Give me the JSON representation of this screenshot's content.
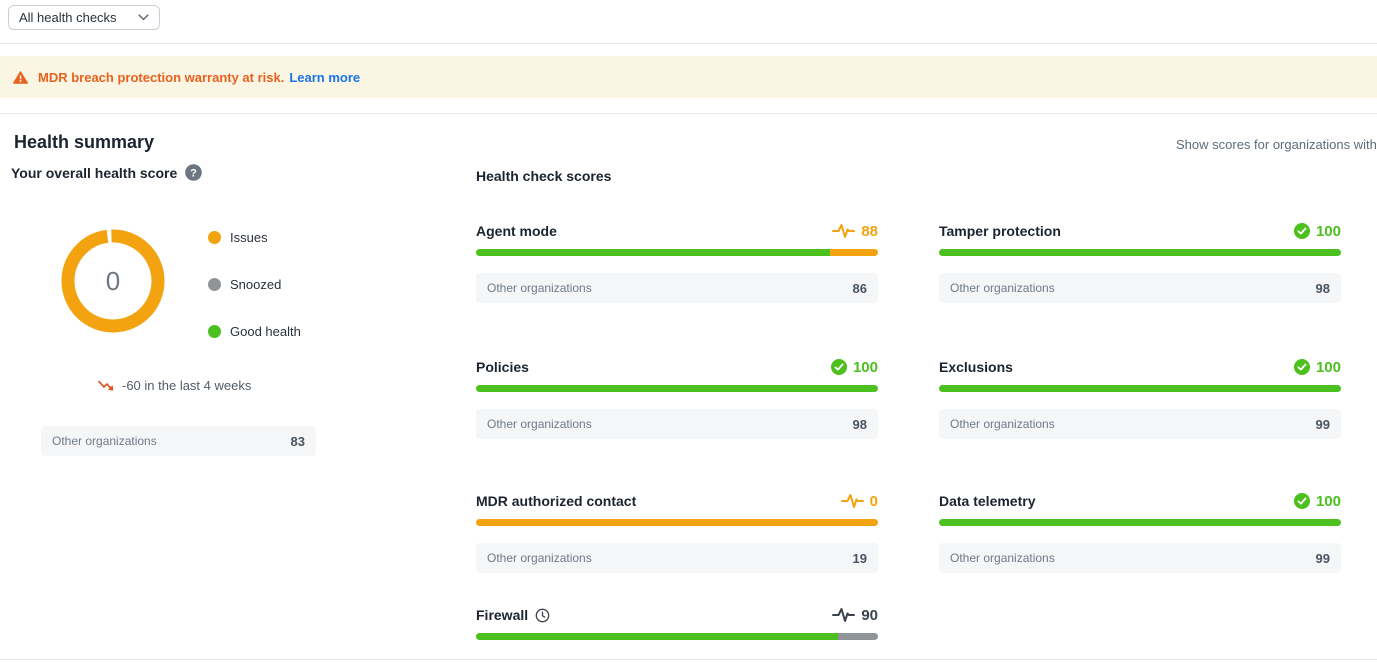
{
  "colors": {
    "orange": "#f2a30f",
    "green": "#4cc01f",
    "gray": "#8f9499",
    "dark": "#3c434d"
  },
  "filter_bar": {
    "dropdown_label": "All health checks"
  },
  "banner": {
    "message": "MDR breach protection warranty at risk.",
    "link_label": "Learn more"
  },
  "summary": {
    "title": "Health summary",
    "right_note": "Show scores for organizations with",
    "subtitle": "Your overall health score",
    "donut": {
      "center_value": "0",
      "ring_color_key": "orange",
      "legend": [
        {
          "label": "Issues",
          "color_key": "orange"
        },
        {
          "label": "Snoozed",
          "color_key": "gray"
        },
        {
          "label": "Good health",
          "color_key": "green"
        }
      ]
    },
    "trend": {
      "text": "-60 in the last 4 weeks"
    },
    "comparison": {
      "label": "Other organizations",
      "value": "83"
    }
  },
  "scores": {
    "title": "Health check scores",
    "cards": [
      {
        "name": "Agent mode",
        "icon": "pulse",
        "icon_color_key": "orange",
        "score": "88",
        "score_color_key": "orange",
        "segments": [
          {
            "color_key": "green",
            "pct": 88
          },
          {
            "color_key": "orange",
            "pct": 12
          }
        ],
        "comparison": {
          "label": "Other organizations",
          "value": "86"
        }
      },
      {
        "name": "Tamper protection",
        "icon": "check",
        "icon_color_key": "green",
        "score": "100",
        "score_color_key": "green",
        "segments": [
          {
            "color_key": "green",
            "pct": 100
          }
        ],
        "comparison": {
          "label": "Other organizations",
          "value": "98"
        }
      },
      {
        "name": "Policies",
        "icon": "check",
        "icon_color_key": "green",
        "score": "100",
        "score_color_key": "green",
        "segments": [
          {
            "color_key": "green",
            "pct": 100
          }
        ],
        "comparison": {
          "label": "Other organizations",
          "value": "98"
        }
      },
      {
        "name": "Exclusions",
        "icon": "check",
        "icon_color_key": "green",
        "score": "100",
        "score_color_key": "green",
        "segments": [
          {
            "color_key": "green",
            "pct": 100
          }
        ],
        "comparison": {
          "label": "Other organizations",
          "value": "99"
        }
      },
      {
        "name": "MDR authorized contact",
        "icon": "pulse",
        "icon_color_key": "orange",
        "score": "0",
        "score_color_key": "orange",
        "segments": [
          {
            "color_key": "orange",
            "pct": 100
          }
        ],
        "comparison": {
          "label": "Other organizations",
          "value": "19"
        }
      },
      {
        "name": "Data telemetry",
        "icon": "check",
        "icon_color_key": "green",
        "score": "100",
        "score_color_key": "green",
        "segments": [
          {
            "color_key": "green",
            "pct": 100
          }
        ],
        "comparison": {
          "label": "Other organizations",
          "value": "99"
        }
      },
      {
        "name": "Firewall",
        "title_icon": "clock",
        "icon": "pulse",
        "icon_color_key": "dark",
        "score": "90",
        "score_color_key": "dark",
        "segments": [
          {
            "color_key": "green",
            "pct": 90
          },
          {
            "color_key": "gray",
            "pct": 10
          }
        ],
        "comparison": null
      }
    ]
  }
}
